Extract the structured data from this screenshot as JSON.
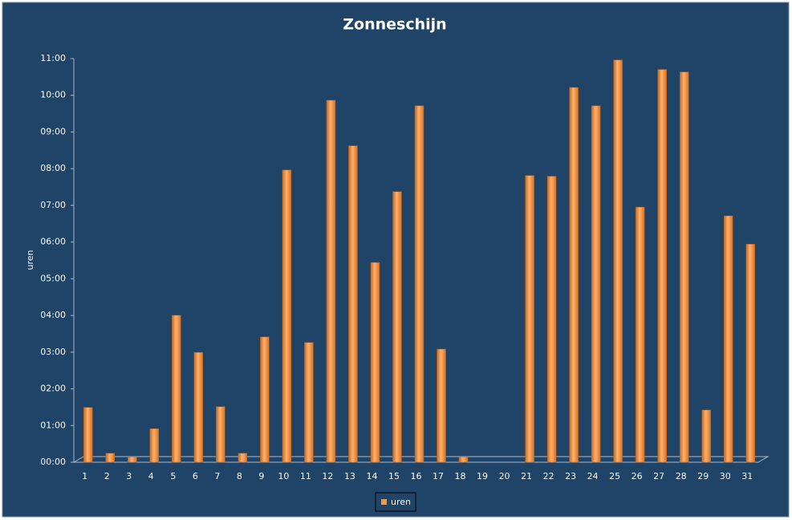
{
  "chart_data": {
    "type": "bar",
    "title": "Zonneschijn",
    "y_label": "uren",
    "categories": [
      "1",
      "2",
      "3",
      "4",
      "5",
      "6",
      "7",
      "8",
      "9",
      "10",
      "11",
      "12",
      "13",
      "14",
      "15",
      "16",
      "17",
      "18",
      "19",
      "20",
      "21",
      "22",
      "23",
      "24",
      "25",
      "26",
      "27",
      "28",
      "29",
      "30",
      "31"
    ],
    "series": [
      {
        "name": "uren",
        "color": "#f79646",
        "values": [
          1.45,
          0.2,
          0.1,
          0.87,
          3.96,
          2.95,
          1.47,
          0.2,
          3.37,
          7.92,
          3.22,
          9.82,
          8.58,
          5.4,
          7.33,
          9.67,
          3.04,
          0.1,
          0,
          0,
          7.77,
          7.75,
          10.17,
          9.67,
          10.92,
          6.91,
          10.66,
          10.59,
          1.38,
          6.67,
          5.9
        ]
      }
    ],
    "ylim": [
      0,
      11
    ],
    "yticks": [
      {
        "value": 0,
        "label": "00:00"
      },
      {
        "value": 1,
        "label": "01:00"
      },
      {
        "value": 2,
        "label": "02:00"
      },
      {
        "value": 3,
        "label": "03:00"
      },
      {
        "value": 4,
        "label": "04:00"
      },
      {
        "value": 5,
        "label": "05:00"
      },
      {
        "value": 6,
        "label": "06:00"
      },
      {
        "value": 7,
        "label": "07:00"
      },
      {
        "value": 8,
        "label": "08:00"
      },
      {
        "value": 9,
        "label": "09:00"
      },
      {
        "value": 10,
        "label": "10:00"
      },
      {
        "value": 11,
        "label": "11:00"
      }
    ],
    "grid": false
  }
}
